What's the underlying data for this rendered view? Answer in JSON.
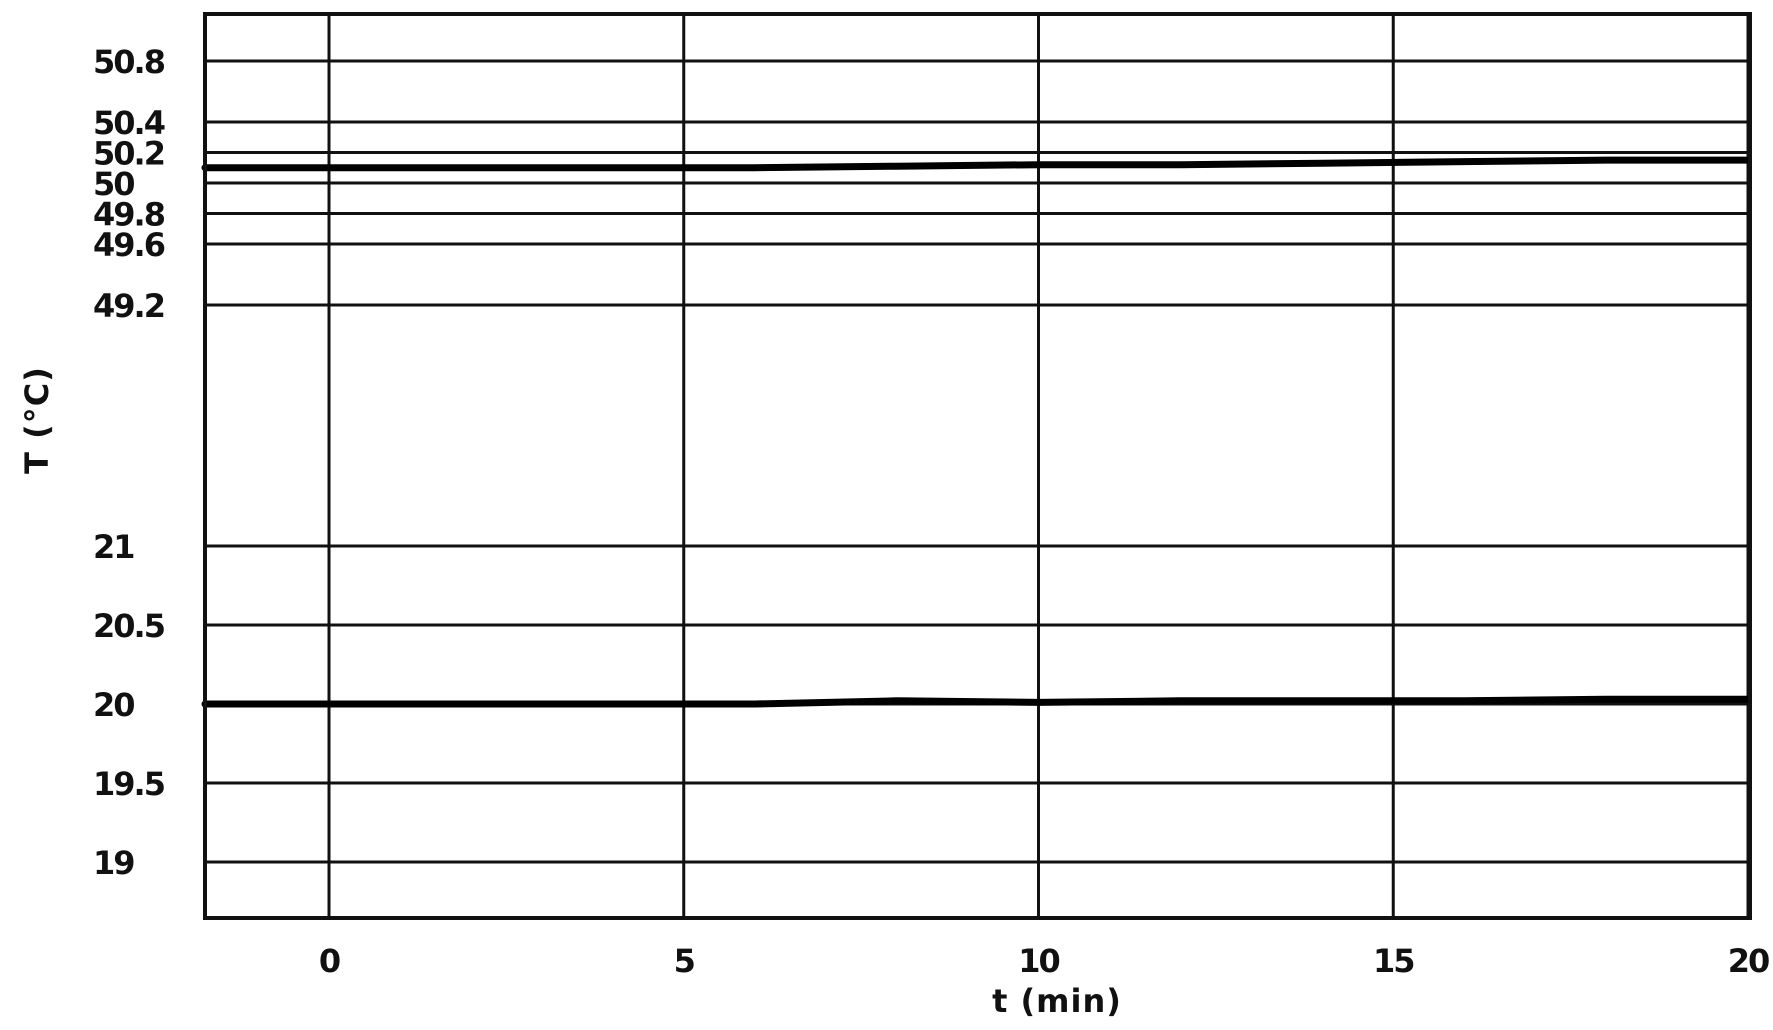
{
  "chart_data": {
    "type": "line",
    "title": "",
    "xlabel": "t (min)",
    "ylabel": "T (°C)",
    "xlim": [
      -2,
      20
    ],
    "x_ticks": [
      0,
      5,
      10,
      15,
      20
    ],
    "x_tick_labels": [
      "0",
      "5",
      "10",
      "15",
      "20"
    ],
    "axis_break": true,
    "y_upper_ticks": [
      50.8,
      50.4,
      50.2,
      50,
      49.8,
      49.6,
      49.2
    ],
    "y_upper_tick_labels": [
      "50.8",
      "50.4",
      "50.2",
      "50",
      "49.8",
      "49.6",
      "49.2"
    ],
    "y_lower_ticks": [
      21,
      20.5,
      20,
      19.5,
      19
    ],
    "y_lower_tick_labels": [
      "21",
      "20.5",
      "20",
      "19.5",
      "19"
    ],
    "grid": true,
    "legend": "none",
    "series": [
      {
        "panel": "upper",
        "x": [
          -2,
          0,
          2,
          4,
          6,
          8,
          10,
          12,
          14,
          16,
          18,
          20
        ],
        "y": [
          50.1,
          50.1,
          50.1,
          50.1,
          50.1,
          50.11,
          50.12,
          50.12,
          50.13,
          50.14,
          50.15,
          50.15
        ]
      },
      {
        "panel": "lower",
        "x": [
          -2,
          0,
          2,
          4,
          6,
          8,
          10,
          12,
          14,
          16,
          18,
          20
        ],
        "y": [
          20,
          20,
          20,
          20,
          20,
          20.02,
          20.01,
          20.02,
          20.02,
          20.02,
          20.03,
          20.03
        ]
      }
    ]
  }
}
